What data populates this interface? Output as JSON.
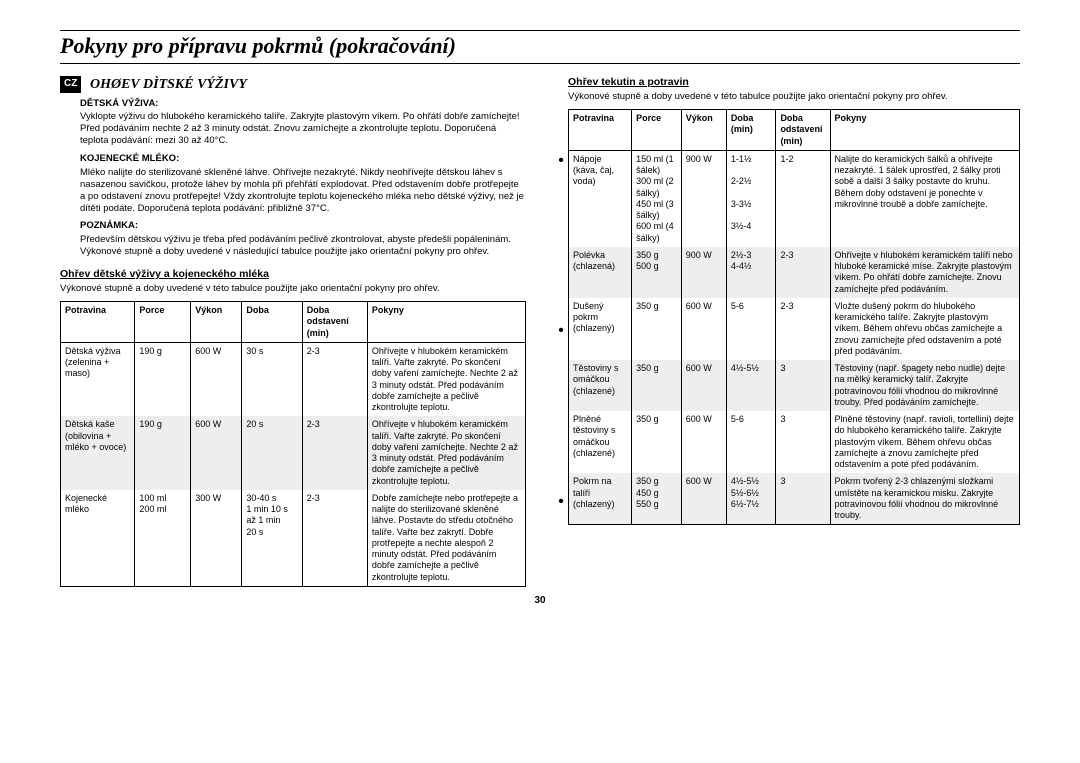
{
  "page_number": "30",
  "lang_badge": "CZ",
  "main_title": "Pokyny pro přípravu pokrmů (pokračování)",
  "left": {
    "section_title": "OHØEV DÌTSKÉ VÝŽIVY",
    "h1": "DĚTSKÁ VÝŽIVA:",
    "p1": "Vyklopte výživu do hlubokého keramického talíře. Zakryjte plastovým víkem. Po ohřátí dobře zamíchejte! Před podáváním nechte 2 až 3 minuty odstát. Znovu zamíchejte a zkontrolujte teplotu. Doporučená teplota podávání: mezi 30 až 40°C.",
    "h2": "KOJENECKÉ MLÉKO:",
    "p2": "Mléko nalijte do sterilizované skleněné láhve. Ohřívejte nezakryté. Nikdy neohřívejte dětskou láhev s nasazenou savičkou, protože láhev by mohla při přehřátí explodovat. Před odstavením dobře protřepejte a po odstavení znovu protřepejte! Vždy zkontrolujte teplotu kojeneckého mléka nebo dětské výživy, než je dítěti podáte. Doporučená teplota podávání: přibližně 37°C.",
    "h3": "POZNÁMKA:",
    "p3": "Především dětskou výživu je třeba před podáváním pečlivě zkontrolovat, abyste předešli popáleninám. Výkonové stupně a doby uvedené v následující tabulce použijte jako orientační pokyny pro ohřev.",
    "table_title": "Ohřev dětské výživy a kojeneckého mléka",
    "table_sub": "Výkonové stupně a doby uvedené v této tabulce použijte jako orientační pokyny pro ohřev.",
    "headers": [
      "Potravina",
      "Porce",
      "Výkon",
      "Doba",
      "Doba odstavení (min)",
      "Pokyny"
    ],
    "rows": [
      {
        "c": [
          "Dětská výživa (zelenina + maso)",
          "190 g",
          "600 W",
          "30 s",
          "2-3",
          "Ohřívejte v hlubokém keramickém talíři. Vařte zakryté. Po skončení doby vaření zamíchejte. Nechte 2 až 3 minuty odstát. Před podáváním dobře zamíchejte a pečlivě zkontrolujte teplotu."
        ],
        "shade": false
      },
      {
        "c": [
          "Dětská kaše (obilovina + mléko + ovoce)",
          "190 g",
          "600 W",
          "20 s",
          "2-3",
          "Ohřívejte v hlubokém keramickém talíři. Vařte zakryté. Po skončení doby vaření zamíchejte. Nechte 2 až 3 minuty odstát. Před podáváním dobře zamíchejte a pečlivě zkontrolujte teplotu."
        ],
        "shade": true
      },
      {
        "c": [
          "Kojenecké mléko",
          "100 ml\n200 ml",
          "300 W",
          "30-40 s\n1 min 10 s\naž 1 min\n20 s",
          "2-3",
          "Dobře zamíchejte nebo protřepejte a nalijte do sterilizované skleněné láhve. Postavte do středu otočného talíře. Vařte bez zakrytí. Dobře protřepejte a nechte alespoň 2 minuty odstát. Před podáváním dobře zamíchejte a pečlivě zkontrolujte teplotu."
        ],
        "shade": false
      }
    ],
    "col_widths": [
      "16%",
      "12%",
      "11%",
      "13%",
      "14%",
      "34%"
    ]
  },
  "right": {
    "table_title": "Ohřev tekutin a potravin",
    "table_sub": "Výkonové stupně a doby uvedené v této tabulce použijte jako orientační pokyny pro ohřev.",
    "headers": [
      "Potravina",
      "Porce",
      "Výkon",
      "Doba (min)",
      "Doba odstavení (min)",
      "Pokyny"
    ],
    "rows": [
      {
        "c": [
          "Nápoje (káva, čaj, voda)",
          "150 ml (1 šálek)\n300 ml (2 šálky)\n450 ml (3 šálky)\n600 ml (4 šálky)",
          "900 W",
          "1-1½\n\n2-2½\n\n3-3½\n\n3½-4",
          "1-2",
          "Nalijte do keramických šálků a ohřívejte nezakryté. 1 šálek uprostřed, 2 šálky proti sobě a další 3 šálky postavte do kruhu. Během doby odstavení je ponechte v mikrovlnné troubě a dobře zamíchejte."
        ],
        "shade": false
      },
      {
        "c": [
          "Polévka (chlazená)",
          "350 g\n500 g",
          "900 W",
          "2½-3\n4-4½",
          "2-3",
          "Ohřívejte v hlubokém keramickém talíři nebo hluboké keramické míse. Zakryjte plastovým víkem. Po ohřátí dobře zamíchejte. Znovu zamíchejte před podáváním."
        ],
        "shade": true
      },
      {
        "c": [
          "Dušený pokrm (chlazený)",
          "350 g",
          "600 W",
          "5-6",
          "2-3",
          "Vložte dušený pokrm do hlubokého keramického talíře. Zakryjte plastovým víkem. Během ohřevu občas zamíchejte a znovu zamíchejte před odstavením a poté před podáváním."
        ],
        "shade": false
      },
      {
        "c": [
          "Těstoviny s omáčkou (chlazené)",
          "350 g",
          "600 W",
          "4½-5½",
          "3",
          "Těstoviny (např. špagety nebo nudle) dejte na mělký keramický talíř. Zakryjte potravinovou fólií vhodnou do mikrovlnné trouby. Před podáváním zamíchejte."
        ],
        "shade": true
      },
      {
        "c": [
          "Plněné těstoviny s omáčkou (chlazené)",
          "350 g",
          "600 W",
          "5-6",
          "3",
          "Plněné těstoviny (např. ravioli, tortellini) dejte do hlubokého keramického talíře. Zakryjte plastovým víkem. Během ohřevu občas zamíchejte a znovu zamíchejte před odstavením a poté před podáváním."
        ],
        "shade": false
      },
      {
        "c": [
          "Pokrm na talíři (chlazený)",
          "350 g\n450 g\n550 g",
          "600 W",
          "4½-5½\n5½-6½\n6½-7½",
          "3",
          "Pokrm tvořený 2-3 chlazenými složkami umístěte na keramickou misku. Zakryjte potravinovou fólií vhodnou do mikrovlnné trouby."
        ],
        "shade": true
      }
    ],
    "col_widths": [
      "14%",
      "11%",
      "10%",
      "11%",
      "12%",
      "42%"
    ]
  }
}
